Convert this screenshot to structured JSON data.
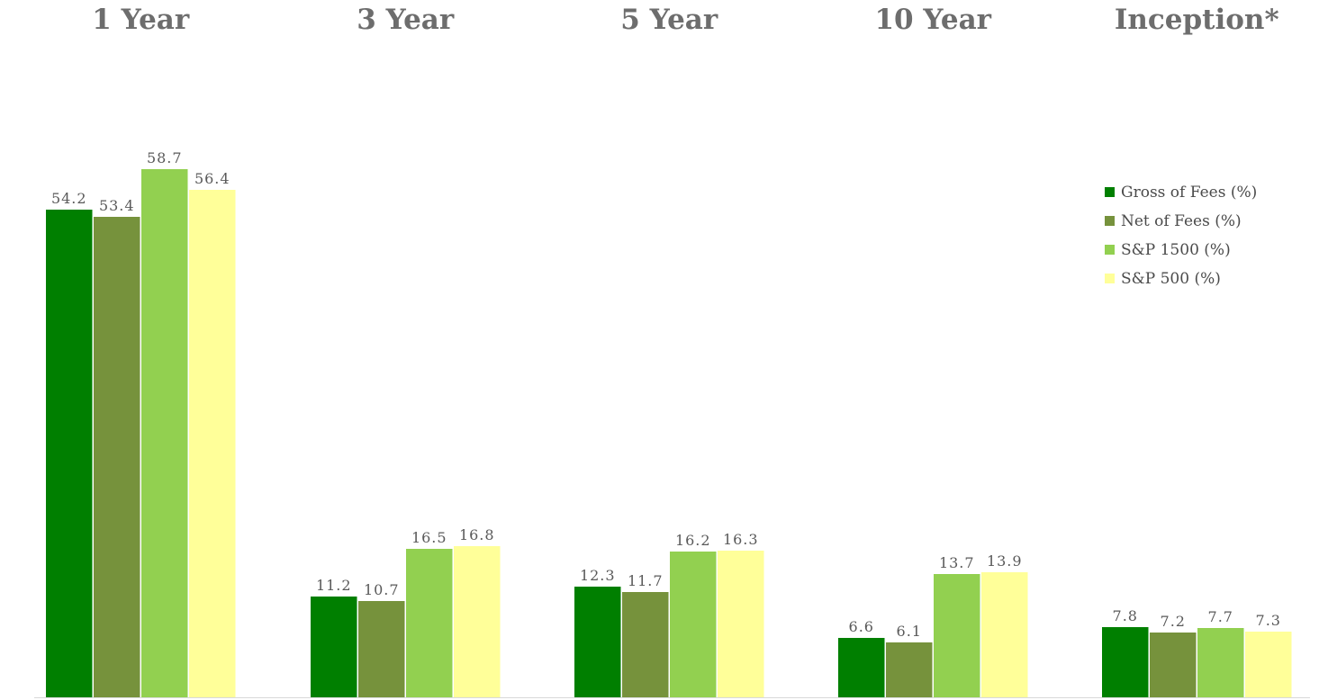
{
  "chart_data": {
    "type": "bar",
    "categories": [
      "1 Year",
      "3 Year",
      "5 Year",
      "10 Year",
      "Inception*"
    ],
    "series": [
      {
        "name": "Gross of Fees (%)",
        "color": "#007f00",
        "values": [
          54.2,
          11.2,
          12.3,
          6.6,
          7.8
        ]
      },
      {
        "name": "Net of Fees (%)",
        "color": "#76923c",
        "values": [
          53.4,
          10.7,
          11.7,
          6.1,
          7.2
        ]
      },
      {
        "name": "S&P 1500 (%)",
        "color": "#92d050",
        "values": [
          58.7,
          16.5,
          16.2,
          13.7,
          7.7
        ]
      },
      {
        "name": "S&P 500 (%)",
        "color": "#ffff99",
        "values": [
          56.4,
          16.8,
          16.3,
          13.9,
          7.3
        ]
      }
    ],
    "ylim": [
      0,
      70
    ],
    "category_label_position": "top",
    "legend_position": "right",
    "grid": false
  }
}
